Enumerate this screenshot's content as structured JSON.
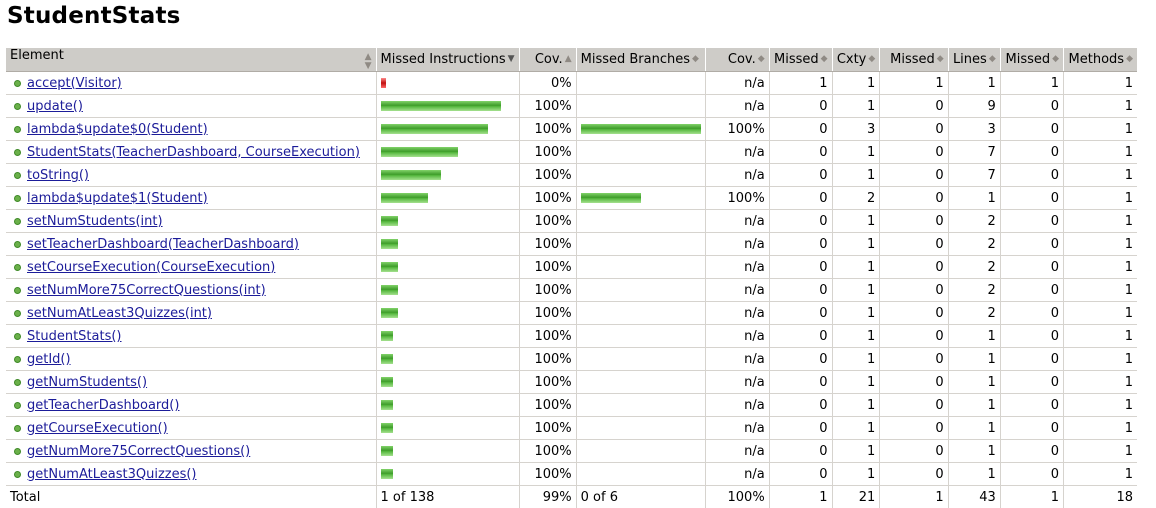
{
  "page_title": "StudentStats",
  "headers": {
    "element": "Element",
    "missed_instructions": "Missed Instructions",
    "cov1": "Cov.",
    "missed_branches": "Missed Branches",
    "cov2": "Cov.",
    "missed_cxty": "Missed",
    "cxty": "Cxty",
    "missed_lines": "Missed",
    "lines": "Lines",
    "missed_methods": "Missed",
    "methods": "Methods"
  },
  "colors": {
    "covered_bar": "#3e9c2a",
    "missed_bar": "#c01010",
    "header_bg": "#ceccc8",
    "link": "#1c1c99"
  },
  "rows": [
    {
      "name": "accept(Visitor)",
      "instr_missed_fraction": 1.0,
      "instr_scale": 0.04,
      "instr_cov": "0%",
      "branch_fraction": null,
      "branch_cov": "n/a",
      "missed_cxty": "1",
      "cxty": "1",
      "missed_lines": "1",
      "lines": "1",
      "missed_methods": "1",
      "methods": "1"
    },
    {
      "name": "update()",
      "instr_missed_fraction": 0.0,
      "instr_scale": 1.0,
      "instr_cov": "100%",
      "branch_fraction": null,
      "branch_cov": "n/a",
      "missed_cxty": "0",
      "cxty": "1",
      "missed_lines": "0",
      "lines": "9",
      "missed_methods": "0",
      "methods": "1"
    },
    {
      "name": "lambda$update$0(Student)",
      "instr_missed_fraction": 0.0,
      "instr_scale": 0.89,
      "instr_cov": "100%",
      "branch_fraction": 1.0,
      "branch_cov": "100%",
      "missed_cxty": "0",
      "cxty": "3",
      "missed_lines": "0",
      "lines": "3",
      "missed_methods": "0",
      "methods": "1"
    },
    {
      "name": "StudentStats(TeacherDashboard, CourseExecution)",
      "instr_missed_fraction": 0.0,
      "instr_scale": 0.64,
      "instr_cov": "100%",
      "branch_fraction": null,
      "branch_cov": "n/a",
      "missed_cxty": "0",
      "cxty": "1",
      "missed_lines": "0",
      "lines": "7",
      "missed_methods": "0",
      "methods": "1"
    },
    {
      "name": "toString()",
      "instr_missed_fraction": 0.0,
      "instr_scale": 0.5,
      "instr_cov": "100%",
      "branch_fraction": null,
      "branch_cov": "n/a",
      "missed_cxty": "0",
      "cxty": "1",
      "missed_lines": "0",
      "lines": "7",
      "missed_methods": "0",
      "methods": "1"
    },
    {
      "name": "lambda$update$1(Student)",
      "instr_missed_fraction": 0.0,
      "instr_scale": 0.39,
      "instr_cov": "100%",
      "branch_fraction": 0.5,
      "branch_cov": "100%",
      "missed_cxty": "0",
      "cxty": "2",
      "missed_lines": "0",
      "lines": "1",
      "missed_methods": "0",
      "methods": "1"
    },
    {
      "name": "setNumStudents(int)",
      "instr_missed_fraction": 0.0,
      "instr_scale": 0.14,
      "instr_cov": "100%",
      "branch_fraction": null,
      "branch_cov": "n/a",
      "missed_cxty": "0",
      "cxty": "1",
      "missed_lines": "0",
      "lines": "2",
      "missed_methods": "0",
      "methods": "1"
    },
    {
      "name": "setTeacherDashboard(TeacherDashboard)",
      "instr_missed_fraction": 0.0,
      "instr_scale": 0.14,
      "instr_cov": "100%",
      "branch_fraction": null,
      "branch_cov": "n/a",
      "missed_cxty": "0",
      "cxty": "1",
      "missed_lines": "0",
      "lines": "2",
      "missed_methods": "0",
      "methods": "1"
    },
    {
      "name": "setCourseExecution(CourseExecution)",
      "instr_missed_fraction": 0.0,
      "instr_scale": 0.14,
      "instr_cov": "100%",
      "branch_fraction": null,
      "branch_cov": "n/a",
      "missed_cxty": "0",
      "cxty": "1",
      "missed_lines": "0",
      "lines": "2",
      "missed_methods": "0",
      "methods": "1"
    },
    {
      "name": "setNumMore75CorrectQuestions(int)",
      "instr_missed_fraction": 0.0,
      "instr_scale": 0.14,
      "instr_cov": "100%",
      "branch_fraction": null,
      "branch_cov": "n/a",
      "missed_cxty": "0",
      "cxty": "1",
      "missed_lines": "0",
      "lines": "2",
      "missed_methods": "0",
      "methods": "1"
    },
    {
      "name": "setNumAtLeast3Quizzes(int)",
      "instr_missed_fraction": 0.0,
      "instr_scale": 0.14,
      "instr_cov": "100%",
      "branch_fraction": null,
      "branch_cov": "n/a",
      "missed_cxty": "0",
      "cxty": "1",
      "missed_lines": "0",
      "lines": "2",
      "missed_methods": "0",
      "methods": "1"
    },
    {
      "name": "StudentStats()",
      "instr_missed_fraction": 0.0,
      "instr_scale": 0.1,
      "instr_cov": "100%",
      "branch_fraction": null,
      "branch_cov": "n/a",
      "missed_cxty": "0",
      "cxty": "1",
      "missed_lines": "0",
      "lines": "1",
      "missed_methods": "0",
      "methods": "1"
    },
    {
      "name": "getId()",
      "instr_missed_fraction": 0.0,
      "instr_scale": 0.1,
      "instr_cov": "100%",
      "branch_fraction": null,
      "branch_cov": "n/a",
      "missed_cxty": "0",
      "cxty": "1",
      "missed_lines": "0",
      "lines": "1",
      "missed_methods": "0",
      "methods": "1"
    },
    {
      "name": "getNumStudents()",
      "instr_missed_fraction": 0.0,
      "instr_scale": 0.1,
      "instr_cov": "100%",
      "branch_fraction": null,
      "branch_cov": "n/a",
      "missed_cxty": "0",
      "cxty": "1",
      "missed_lines": "0",
      "lines": "1",
      "missed_methods": "0",
      "methods": "1"
    },
    {
      "name": "getTeacherDashboard()",
      "instr_missed_fraction": 0.0,
      "instr_scale": 0.1,
      "instr_cov": "100%",
      "branch_fraction": null,
      "branch_cov": "n/a",
      "missed_cxty": "0",
      "cxty": "1",
      "missed_lines": "0",
      "lines": "1",
      "missed_methods": "0",
      "methods": "1"
    },
    {
      "name": "getCourseExecution()",
      "instr_missed_fraction": 0.0,
      "instr_scale": 0.1,
      "instr_cov": "100%",
      "branch_fraction": null,
      "branch_cov": "n/a",
      "missed_cxty": "0",
      "cxty": "1",
      "missed_lines": "0",
      "lines": "1",
      "missed_methods": "0",
      "methods": "1"
    },
    {
      "name": "getNumMore75CorrectQuestions()",
      "instr_missed_fraction": 0.0,
      "instr_scale": 0.1,
      "instr_cov": "100%",
      "branch_fraction": null,
      "branch_cov": "n/a",
      "missed_cxty": "0",
      "cxty": "1",
      "missed_lines": "0",
      "lines": "1",
      "missed_methods": "0",
      "methods": "1"
    },
    {
      "name": "getNumAtLeast3Quizzes()",
      "instr_missed_fraction": 0.0,
      "instr_scale": 0.1,
      "instr_cov": "100%",
      "branch_fraction": null,
      "branch_cov": "n/a",
      "missed_cxty": "0",
      "cxty": "1",
      "missed_lines": "0",
      "lines": "1",
      "missed_methods": "0",
      "methods": "1"
    }
  ],
  "totals": {
    "label": "Total",
    "instr": "1 of 138",
    "instr_cov": "99%",
    "branches": "0 of 6",
    "branch_cov": "100%",
    "missed_cxty": "1",
    "cxty": "21",
    "missed_lines": "1",
    "lines": "43",
    "missed_methods": "1",
    "methods": "18"
  }
}
